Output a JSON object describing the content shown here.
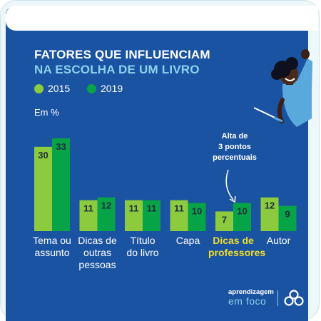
{
  "colors": {
    "background": "#1b53a3",
    "y2015": "#8ccb3e",
    "y2019": "#07a347",
    "highlight": "#f1de26",
    "accent": "#8ad2ec"
  },
  "title_line1": "FATORES QUE INFLUENCIAM",
  "title_line2": "NA ESCOLHA DE UM LIVRO",
  "unit_label": "Em %",
  "annotation": "Alta de\n3 pontos\npercentuais",
  "brand": {
    "line1": "aprendizagem",
    "line2": "em foco"
  },
  "chart_data": {
    "type": "bar",
    "title": "FATORES QUE INFLUENCIAM NA ESCOLHA DE UM LIVRO",
    "ylabel": "Em %",
    "categories": [
      "Tema ou\nassunto",
      "Dicas de\noutras\npessoas",
      "Título\ndo livro",
      "Capa",
      "Dicas de\nprofessores",
      "Autor"
    ],
    "highlighted_category_index": 4,
    "series": [
      {
        "name": "2015",
        "color": "#8ccb3e",
        "values": [
          30,
          11,
          11,
          11,
          7,
          12
        ]
      },
      {
        "name": "2019",
        "color": "#07a347",
        "values": [
          33,
          12,
          11,
          10,
          10,
          9
        ]
      }
    ],
    "ylim": [
      0,
      33
    ],
    "grid": false,
    "legend": "top-left"
  }
}
